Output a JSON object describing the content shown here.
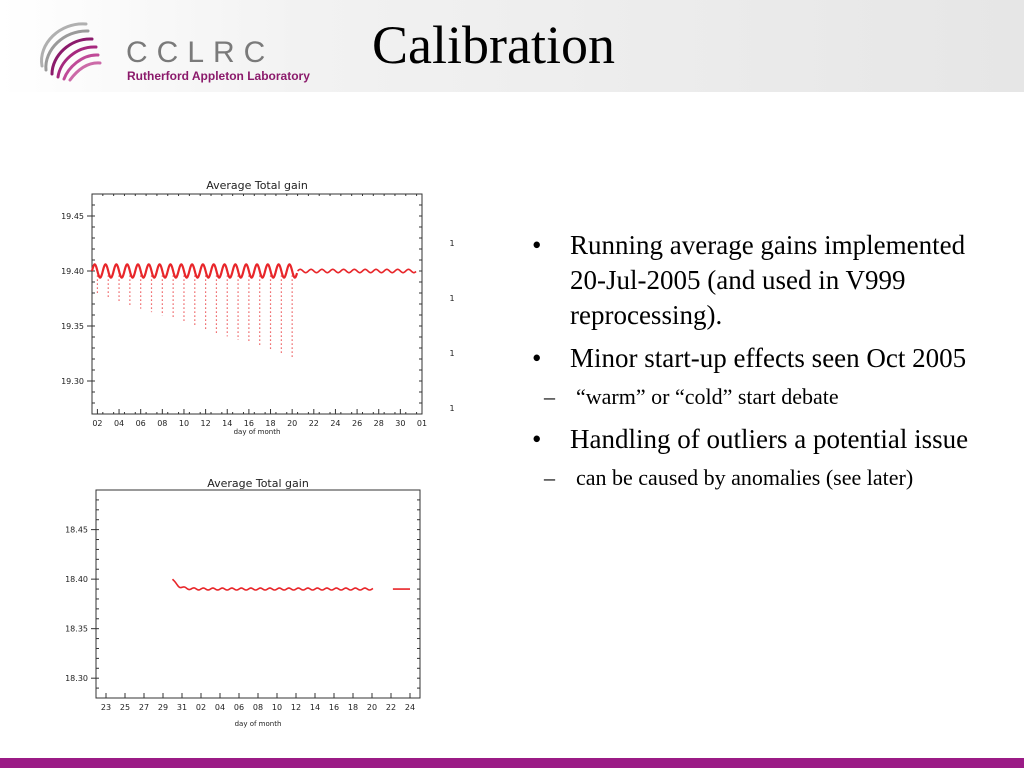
{
  "header": {
    "title": "Calibration",
    "logo_text": "CCLRC",
    "logo_subtitle": "Rutherford Appleton Laboratory"
  },
  "bullets": [
    {
      "text": "Running average gains implemented 20-Jul-2005 (and used in V999 reprocessing).",
      "subs": []
    },
    {
      "text": "Minor start-up effects seen Oct 2005",
      "subs": [
        "“warm” or “cold” start debate"
      ]
    },
    {
      "text": "Handling of outliers a potential issue",
      "subs": [
        "can be caused by anomalies (see later)"
      ]
    }
  ],
  "bullet_glyph": "•",
  "sub_glyph": "–",
  "colors": {
    "accent": "#9b1b86",
    "series": "#e8262a"
  },
  "chart_data": [
    {
      "type": "scatter",
      "title": "Average Total gain",
      "xlabel": "day of month",
      "ylabel": "",
      "xlim": [
        1,
        31.5
      ],
      "ylim": [
        19.27,
        19.47
      ],
      "xticks": [
        "02",
        "04",
        "06",
        "08",
        "10",
        "12",
        "14",
        "16",
        "18",
        "20",
        "22",
        "24",
        "26",
        "28",
        "30",
        "01"
      ],
      "yticks": [
        19.45,
        19.4,
        19.35,
        19.3
      ],
      "ytick_labels": [
        "19.45",
        "19.40",
        "19.35",
        "19.30"
      ],
      "right_labels": [
        "1",
        "1",
        "1",
        "1"
      ],
      "series": [
        {
          "segment": "days 1-20",
          "x_range": [
            1,
            20
          ],
          "baseline": 19.4,
          "oscillation_amplitude": 0.006,
          "period_days": 1,
          "outlier_min_start": 19.38,
          "outlier_min_end": 19.32
        },
        {
          "segment": "days 20-31",
          "x_range": [
            20,
            31
          ],
          "baseline": 19.4,
          "oscillation_amplitude": 0.0015,
          "period_days": 1
        }
      ]
    },
    {
      "type": "line",
      "title": "Average Total gain",
      "xlabel": "day of month",
      "ylabel": "",
      "xlim": [
        22.5,
        24.5
      ],
      "ylim": [
        18.28,
        18.49
      ],
      "xticks": [
        "23",
        "25",
        "27",
        "29",
        "31",
        "02",
        "04",
        "06",
        "08",
        "10",
        "12",
        "14",
        "16",
        "18",
        "20",
        "22",
        "24"
      ],
      "yticks": [
        18.45,
        18.4,
        18.35,
        18.3
      ],
      "ytick_labels": [
        "18.45",
        "18.40",
        "18.35",
        "18.30"
      ],
      "series": [
        {
          "segment": "late Sep - 20 Oct",
          "start_value": 18.4,
          "settled_value": 18.39,
          "oscillation_amplitude": 0.001
        },
        {
          "segment": "22-24 Oct",
          "value": 18.39
        }
      ]
    }
  ]
}
